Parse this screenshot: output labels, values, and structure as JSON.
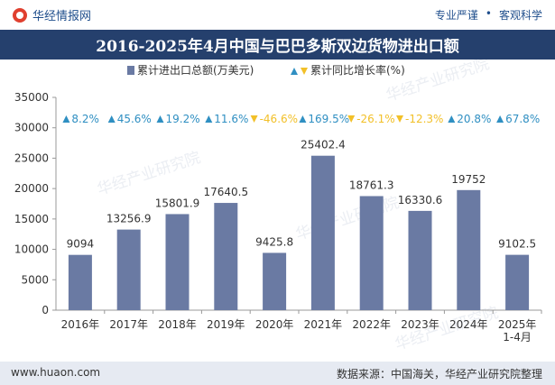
{
  "header": {
    "brand": "华经情报网",
    "slogan_left": "专业严谨",
    "slogan_sep": "•",
    "slogan_right": "客观科学"
  },
  "footer": {
    "website": "www.huaon.com",
    "source": "数据来源：中国海关，华经产业研究院整理"
  },
  "watermark": "华经产业研究院",
  "colors": {
    "bar": "#6a7aa3",
    "title_bg": "#25406d",
    "up": "#2f8fc2",
    "down": "#f2c029"
  },
  "chart_data": {
    "type": "bar",
    "title": "2016-2025年4月中国与巴巴多斯双边货物进出口额",
    "categories": [
      "2016年",
      "2017年",
      "2018年",
      "2019年",
      "2020年",
      "2021年",
      "2022年",
      "2023年",
      "2024年",
      "2025年\n1-4月"
    ],
    "series": [
      {
        "name": "累计进出口总额(万美元)",
        "values": [
          9094,
          13256.9,
          15801.9,
          17640.5,
          9425.8,
          25402.4,
          18761.3,
          16330.6,
          19752,
          9102.5
        ],
        "labels": [
          "9094",
          "13256.9",
          "15801.9",
          "17640.5",
          "9425.8",
          "25402.4",
          "18761.3",
          "16330.6",
          "19752",
          "9102.5"
        ]
      },
      {
        "name": "累计同比增长率(%)",
        "values": [
          8.2,
          45.6,
          19.2,
          11.6,
          -46.6,
          169.5,
          -26.1,
          -12.3,
          20.8,
          67.8
        ],
        "labels": [
          "8.2%",
          "45.6%",
          "19.2%",
          "11.6%",
          "-46.6%",
          "169.5%",
          "-26.1%",
          "-12.3%",
          "20.8%",
          "67.8%"
        ]
      }
    ],
    "ylim": [
      0,
      35000
    ],
    "yticks": [
      0,
      5000,
      10000,
      15000,
      20000,
      25000,
      30000,
      35000
    ],
    "legend_position": "top-center",
    "grid": false
  }
}
